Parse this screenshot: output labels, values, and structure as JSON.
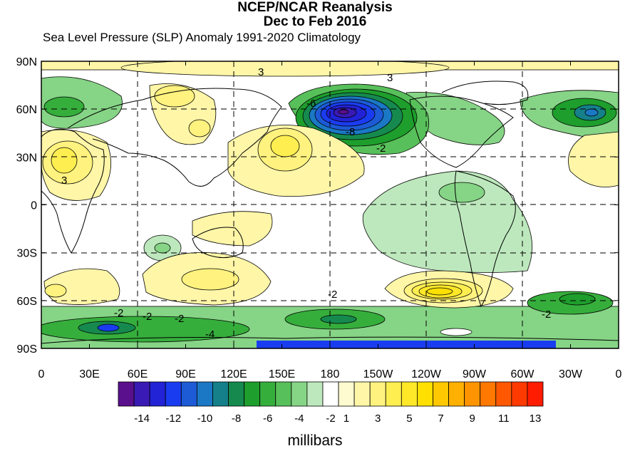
{
  "title_line1": "NCEP/NCAR Reanalysis",
  "title_line2": "Dec to Feb 2016",
  "subtitle": "Sea Level Pressure (SLP) Anomaly  1991-2020 Climatology",
  "units": "millibars",
  "y_ticks": [
    {
      "label": "90N",
      "lat": 90
    },
    {
      "label": "60N",
      "lat": 60
    },
    {
      "label": "30N",
      "lat": 30
    },
    {
      "label": "0",
      "lat": 0
    },
    {
      "label": "30S",
      "lat": -30
    },
    {
      "label": "60S",
      "lat": -60
    },
    {
      "label": "90S",
      "lat": -90
    }
  ],
  "x_ticks": [
    {
      "label": "0",
      "lon": 0
    },
    {
      "label": "30E",
      "lon": 30
    },
    {
      "label": "60E",
      "lon": 60
    },
    {
      "label": "90E",
      "lon": 90
    },
    {
      "label": "120E",
      "lon": 120
    },
    {
      "label": "150E",
      "lon": 150
    },
    {
      "label": "180",
      "lon": 180
    },
    {
      "label": "150W",
      "lon": 210
    },
    {
      "label": "120W",
      "lon": 240
    },
    {
      "label": "90W",
      "lon": 270
    },
    {
      "label": "60W",
      "lon": 300
    },
    {
      "label": "30W",
      "lon": 330
    },
    {
      "label": "0",
      "lon": 360
    }
  ],
  "colorbar": {
    "colors": [
      "#5a0f8c",
      "#3a1ab4",
      "#2222d6",
      "#1a3cf0",
      "#1c5ad6",
      "#1a78c4",
      "#15808a",
      "#168a4e",
      "#1e9e2c",
      "#36ae3c",
      "#58c05a",
      "#86d486",
      "#bde8bd",
      "#ffffff",
      "#fffbd0",
      "#fff6a8",
      "#fff27e",
      "#ffee50",
      "#ffe828",
      "#ffe000",
      "#ffc800",
      "#ffb000",
      "#ff9400",
      "#ff7800",
      "#ff5800",
      "#ff3a00",
      "#ff1c00"
    ],
    "labels": [
      {
        "text": "-14",
        "index": 1
      },
      {
        "text": "-12",
        "index": 3
      },
      {
        "text": "-10",
        "index": 5
      },
      {
        "text": "-8",
        "index": 7
      },
      {
        "text": "-6",
        "index": 9
      },
      {
        "text": "-4",
        "index": 11
      },
      {
        "text": "-2",
        "index": 13
      },
      {
        "text": "1",
        "index": 14
      },
      {
        "text": "3",
        "index": 16
      },
      {
        "text": "5",
        "index": 18
      },
      {
        "text": "7",
        "index": 20
      },
      {
        "text": "9",
        "index": 22
      },
      {
        "text": "11",
        "index": 24
      },
      {
        "text": "13",
        "index": 26
      }
    ]
  },
  "anomaly_fields": [
    {
      "name": "north-pacific-low",
      "lon": 135,
      "lat": 56,
      "value": -12,
      "contour_labels": [
        "-6",
        "-8",
        "-2"
      ]
    },
    {
      "name": "north-atlantic-low",
      "lon": 340,
      "lat": 56,
      "value": -8
    },
    {
      "name": "arctic-high",
      "lon": 120,
      "lat": 84,
      "value": 3,
      "contour_labels": [
        "3"
      ]
    },
    {
      "name": "alaska-high",
      "lon": 200,
      "lat": 84,
      "value": 3,
      "contour_labels": [
        "3"
      ]
    },
    {
      "name": "siberian-high",
      "lon": 67,
      "lat": 62,
      "value": 4
    },
    {
      "name": "north-africa-high",
      "lon": 16,
      "lat": 30,
      "value": 4,
      "contour_labels": [
        "3"
      ]
    },
    {
      "name": "east-asia-high",
      "lon": 145,
      "lat": 38,
      "value": 4
    },
    {
      "name": "southeast-pacific-high",
      "lon": 255,
      "lat": -56,
      "value": 8
    },
    {
      "name": "south-indian-high",
      "lon": 100,
      "lat": -45,
      "value": 3
    },
    {
      "name": "south-atlantic-high",
      "lon": 20,
      "lat": -53,
      "value": 3
    },
    {
      "name": "tropical-pacific-low",
      "lon": 230,
      "lat": 7,
      "value": -2
    },
    {
      "name": "antarctic-low-east",
      "lon": 40,
      "lat": -77,
      "value": -6,
      "contour_labels": [
        "-2",
        "-2",
        "-2",
        "-4"
      ]
    },
    {
      "name": "ross-sea-low",
      "lon": 180,
      "lat": -70,
      "value": -4,
      "contour_labels": [
        "-2"
      ]
    },
    {
      "name": "weddell-low",
      "lon": 330,
      "lat": -62,
      "value": -4,
      "contour_labels": [
        "-2"
      ]
    }
  ]
}
